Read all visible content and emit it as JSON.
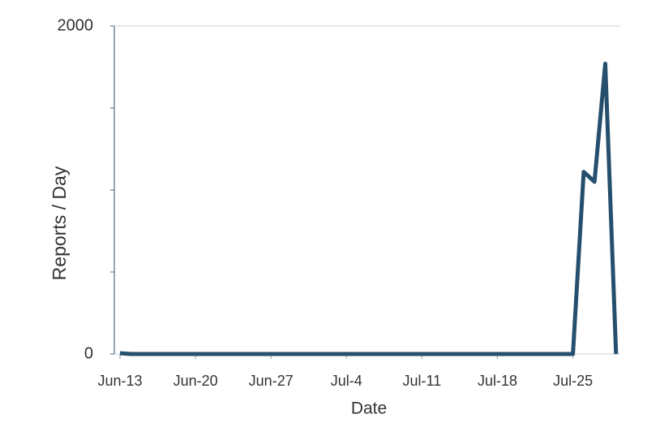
{
  "chart_data": {
    "type": "line",
    "x_label": "Date",
    "y_label": "Reports / Day",
    "categories": [
      "Jun-13",
      null,
      null,
      null,
      null,
      null,
      null,
      "Jun-20",
      null,
      null,
      null,
      null,
      null,
      null,
      "Jun-27",
      null,
      null,
      null,
      null,
      null,
      null,
      "Jul-4",
      null,
      null,
      null,
      null,
      null,
      null,
      "Jul-11",
      null,
      null,
      null,
      null,
      null,
      null,
      "Jul-18",
      null,
      null,
      null,
      null,
      null,
      null,
      "Jul-25",
      null,
      null,
      null,
      null
    ],
    "values": [
      5,
      0,
      0,
      0,
      0,
      0,
      0,
      0,
      0,
      0,
      0,
      0,
      0,
      0,
      0,
      0,
      0,
      0,
      0,
      0,
      0,
      0,
      0,
      0,
      0,
      0,
      0,
      0,
      0,
      0,
      0,
      0,
      0,
      0,
      0,
      0,
      0,
      0,
      0,
      0,
      0,
      0,
      0,
      1110,
      1050,
      1770,
      0
    ],
    "color": "#264f6e",
    "ylim": [
      0,
      2000
    ],
    "yticks": [
      0,
      2000
    ],
    "yminorticks": [
      500,
      1000,
      1500
    ],
    "grid": true
  }
}
